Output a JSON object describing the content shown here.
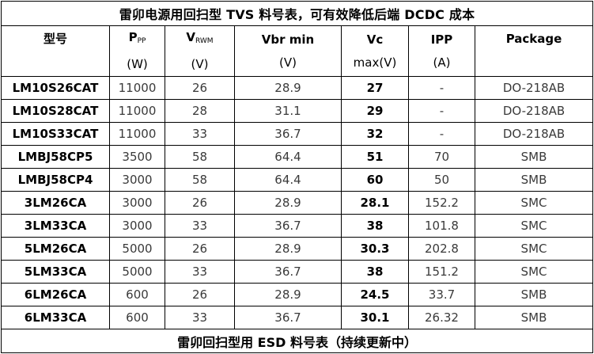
{
  "title": "雷卯电源用回扫型 TVS 料号表，可有效降低后端 DCDC 成本",
  "headers": {
    "model": "型号",
    "ppp_main": "P",
    "ppp_sub": "PP",
    "ppp_unit": "(W)",
    "vrwm_main": "V",
    "vrwm_sub": "RWM",
    "vrwm_unit": "(V)",
    "vbr_line1": "Vbr min",
    "vbr_unit": "(V)",
    "vc_line1": "Vc",
    "vc_unit": "max(V)",
    "ipp_line1": "IPP",
    "ipp_unit": "(A)",
    "package": "Package"
  },
  "rows": [
    {
      "model": "LM10S26CAT",
      "ppp": "11000",
      "vrwm": "26",
      "vbr": "28.9",
      "vc": "27",
      "ipp": "-",
      "package": "DO-218AB"
    },
    {
      "model": "LM10S28CAT",
      "ppp": "11000",
      "vrwm": "28",
      "vbr": "31.1",
      "vc": "29",
      "ipp": "-",
      "package": "DO-218AB"
    },
    {
      "model": "LM10S33CAT",
      "ppp": "11000",
      "vrwm": "33",
      "vbr": "36.7",
      "vc": "32",
      "ipp": "-",
      "package": "DO-218AB"
    },
    {
      "model": "LMBJ58CP5",
      "ppp": "3500",
      "vrwm": "58",
      "vbr": "64.4",
      "vc": "51",
      "ipp": "70",
      "package": "SMB"
    },
    {
      "model": "LMBJ58CP4",
      "ppp": "3000",
      "vrwm": "58",
      "vbr": "64.4",
      "vc": "60",
      "ipp": "50",
      "package": "SMB"
    },
    {
      "model": "3LM26CA",
      "ppp": "3000",
      "vrwm": "26",
      "vbr": "28.9",
      "vc": "28.1",
      "ipp": "152.2",
      "package": "SMC"
    },
    {
      "model": "3LM33CA",
      "ppp": "3000",
      "vrwm": "33",
      "vbr": "36.7",
      "vc": "38",
      "ipp": "101.8",
      "package": "SMC"
    },
    {
      "model": "5LM26CA",
      "ppp": "5000",
      "vrwm": "26",
      "vbr": "28.9",
      "vc": "30.3",
      "ipp": "202.8",
      "package": "SMC"
    },
    {
      "model": "5LM33CA",
      "ppp": "5000",
      "vrwm": "33",
      "vbr": "36.7",
      "vc": "38",
      "ipp": "151.2",
      "package": "SMC"
    },
    {
      "model": "6LM26CA",
      "ppp": "600",
      "vrwm": "26",
      "vbr": "28.9",
      "vc": "24.5",
      "ipp": "33.7",
      "package": "SMB"
    },
    {
      "model": "6LM33CA",
      "ppp": "600",
      "vrwm": "33",
      "vbr": "36.7",
      "vc": "30.1",
      "ipp": "26.32",
      "package": "SMB"
    }
  ],
  "footer": "雷卯回扫型用 ESD 料号表（持续更新中）"
}
